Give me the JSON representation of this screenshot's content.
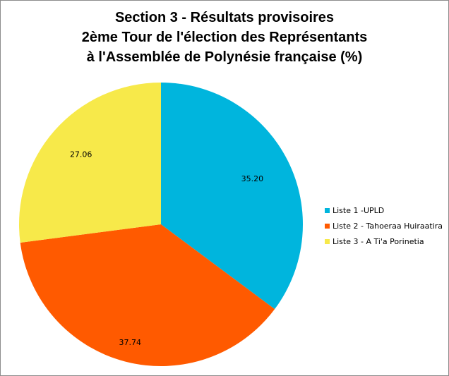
{
  "chart_data": {
    "type": "pie",
    "title": [
      "Section 3 - Résultats provisoires",
      "2ème Tour de l'élection des Représentants",
      "à l'Assemblée de Polynésie française (%)"
    ],
    "categories": [
      "Liste 1  -UPLD",
      "Liste 2 - Tahoeraa Huiraatira",
      "Liste 3 - A Ti'a Porinetia"
    ],
    "values": [
      35.2,
      37.74,
      27.06
    ],
    "labels": [
      "35.20",
      "37.74",
      "27.06"
    ],
    "colors": [
      "#00b5dd",
      "#ff5a00",
      "#f7e94a"
    ],
    "start_angle": "12 o'clock, clockwise",
    "legend_position": "right"
  }
}
